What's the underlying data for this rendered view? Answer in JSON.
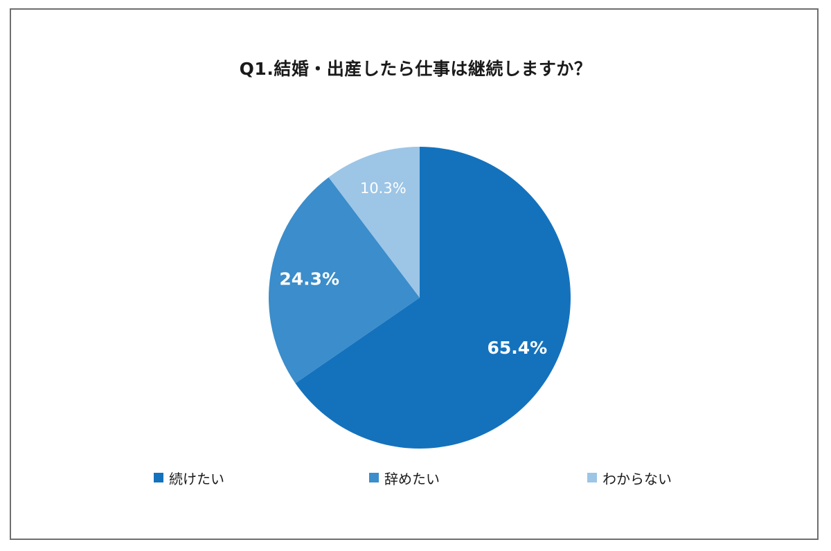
{
  "chart_data": {
    "type": "pie",
    "title": "Q1.結婚・出産したら仕事は継続しますか？",
    "slices": [
      {
        "label": "続けたい",
        "value": 65.4,
        "display": "65.4%",
        "color": "#1472bd",
        "label_color": "#ffffff"
      },
      {
        "label": "辞めたい",
        "value": 24.3,
        "display": "24.3%",
        "color": "#3b8dcb",
        "label_color": "#ffffff"
      },
      {
        "label": "わからない",
        "value": 10.3,
        "display": "10.3%",
        "color": "#9dc5e6",
        "label_color": "#ffffff"
      }
    ],
    "legend_position": "bottom"
  }
}
